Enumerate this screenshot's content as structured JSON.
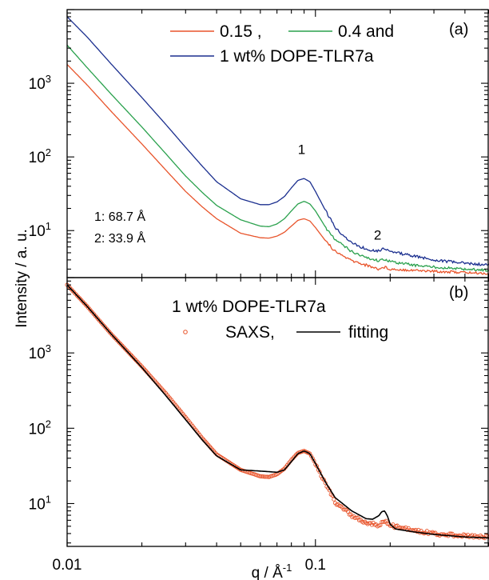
{
  "chart_data": [
    {
      "panel": "(a)",
      "type": "line",
      "xscale": "log",
      "yscale": "log",
      "xlim": [
        0.01,
        0.5
      ],
      "ylim": [
        2.3,
        10000
      ],
      "grid": false,
      "legend_position": "top-right",
      "legend_lines": [
        "0.15 ,",
        "0.4 and",
        "1 wt% DOPE-TLR7a"
      ],
      "annotations": [
        {
          "text": "1",
          "x": 0.088,
          "y": 110
        },
        {
          "text": "2",
          "x": 0.178,
          "y": 7.5
        },
        {
          "text": "1: 68.7 Å",
          "x": 0.0122,
          "y": 15
        },
        {
          "text": "2: 33.9 Å",
          "x": 0.0122,
          "y": 9.2
        }
      ],
      "yticks": [
        {
          "value": 10,
          "label_base": "10",
          "label_exp": "1"
        },
        {
          "value": 100,
          "label_base": "10",
          "label_exp": "2"
        },
        {
          "value": 1000,
          "label_base": "10",
          "label_exp": "3"
        }
      ],
      "series": [
        {
          "name": "0.15",
          "color": "#e8542b",
          "x": [
            0.01,
            0.012,
            0.015,
            0.02,
            0.025,
            0.03,
            0.035,
            0.04,
            0.05,
            0.06,
            0.065,
            0.07,
            0.075,
            0.08,
            0.085,
            0.09,
            0.095,
            0.1,
            0.11,
            0.12,
            0.14,
            0.16,
            0.18,
            0.19,
            0.2,
            0.25,
            0.3,
            0.4,
            0.5
          ],
          "y": [
            1800,
            960,
            420,
            150,
            66,
            34,
            21,
            14.5,
            9.2,
            8.0,
            7.9,
            8.4,
            9.5,
            11.5,
            13.8,
            14.5,
            13.5,
            11.0,
            7.2,
            5.2,
            3.9,
            3.4,
            3.0,
            3.2,
            3.0,
            2.9,
            2.8,
            2.7,
            2.6
          ]
        },
        {
          "name": "0.4",
          "color": "#2aa14d",
          "x": [
            0.01,
            0.012,
            0.015,
            0.02,
            0.025,
            0.03,
            0.035,
            0.04,
            0.05,
            0.06,
            0.065,
            0.07,
            0.075,
            0.08,
            0.085,
            0.09,
            0.095,
            0.1,
            0.11,
            0.12,
            0.14,
            0.16,
            0.18,
            0.19,
            0.2,
            0.25,
            0.3,
            0.4,
            0.5
          ],
          "y": [
            3300,
            1650,
            720,
            255,
            110,
            55,
            33,
            22,
            14.0,
            11.5,
            11.3,
            12.3,
            14.5,
            18.5,
            23,
            25,
            23,
            18.5,
            11.0,
            7.5,
            5.2,
            4.3,
            3.9,
            4.1,
            3.8,
            3.4,
            3.2,
            3.0,
            2.9
          ]
        },
        {
          "name": "1 wt% DOPE-TLR7a",
          "color": "#1b2f8f",
          "x": [
            0.01,
            0.012,
            0.015,
            0.02,
            0.025,
            0.03,
            0.035,
            0.04,
            0.05,
            0.06,
            0.065,
            0.07,
            0.075,
            0.08,
            0.085,
            0.09,
            0.095,
            0.1,
            0.11,
            0.12,
            0.14,
            0.16,
            0.18,
            0.19,
            0.2,
            0.25,
            0.3,
            0.4,
            0.5
          ],
          "y": [
            8000,
            4300,
            1850,
            640,
            275,
            135,
            75,
            46,
            27,
            22.5,
            22.5,
            24.5,
            29,
            38,
            48,
            51,
            46,
            34,
            18.5,
            11.0,
            6.8,
            5.6,
            5.3,
            5.8,
            5.2,
            4.5,
            4.0,
            3.6,
            3.4
          ]
        }
      ]
    },
    {
      "panel": "(b)",
      "type": "scatter",
      "xscale": "log",
      "yscale": "log",
      "xlim": [
        0.01,
        0.5
      ],
      "ylim": [
        2.7,
        10000
      ],
      "grid": false,
      "legend_position": "top-center",
      "legend_title": "1 wt% DOPE-TLR7a",
      "legend_entries": [
        "SAXS,",
        "fitting"
      ],
      "xlabel_text": "q / Å",
      "xlabel_exp": "-1",
      "ylabel": "Intensity / a. u.",
      "xticks": [
        {
          "value": 0.01,
          "label": "0.01"
        },
        {
          "value": 0.1,
          "label": "0.1"
        }
      ],
      "yticks": [
        {
          "value": 10,
          "label_base": "10",
          "label_exp": "1"
        },
        {
          "value": 100,
          "label_base": "10",
          "label_exp": "2"
        },
        {
          "value": 1000,
          "label_base": "10",
          "label_exp": "3"
        }
      ],
      "series": [
        {
          "name": "SAXS",
          "color": "#e8542b",
          "marker": "open-circle",
          "x": [
            0.01,
            0.012,
            0.015,
            0.02,
            0.025,
            0.03,
            0.035,
            0.04,
            0.05,
            0.06,
            0.065,
            0.07,
            0.075,
            0.08,
            0.085,
            0.09,
            0.095,
            0.1,
            0.11,
            0.12,
            0.14,
            0.16,
            0.18,
            0.19,
            0.2,
            0.25,
            0.3,
            0.4,
            0.5
          ],
          "y": [
            8000,
            4200,
            1800,
            660,
            290,
            140,
            74,
            45,
            28,
            23,
            22.5,
            24.5,
            29,
            38,
            47,
            50,
            46,
            34,
            18,
            10.5,
            6.9,
            5.5,
            5.2,
            5.9,
            5.1,
            4.4,
            4.0,
            3.7,
            3.6
          ]
        },
        {
          "name": "fitting",
          "color": "#000000",
          "marker": "line",
          "x": [
            0.01,
            0.012,
            0.015,
            0.02,
            0.025,
            0.03,
            0.035,
            0.04,
            0.05,
            0.06,
            0.065,
            0.07,
            0.075,
            0.08,
            0.085,
            0.09,
            0.095,
            0.1,
            0.11,
            0.12,
            0.14,
            0.16,
            0.17,
            0.18,
            0.185,
            0.19,
            0.195,
            0.2,
            0.21,
            0.25,
            0.3,
            0.4,
            0.5
          ],
          "y": [
            8000,
            4200,
            1800,
            640,
            270,
            130,
            70,
            43,
            28,
            27,
            26.5,
            26,
            28,
            36,
            46,
            50,
            46,
            34,
            19,
            12,
            8.0,
            6.3,
            6.2,
            6.9,
            7.8,
            8.0,
            6.8,
            5.3,
            4.6,
            4.2,
            3.9,
            3.6,
            3.5
          ]
        }
      ]
    }
  ]
}
